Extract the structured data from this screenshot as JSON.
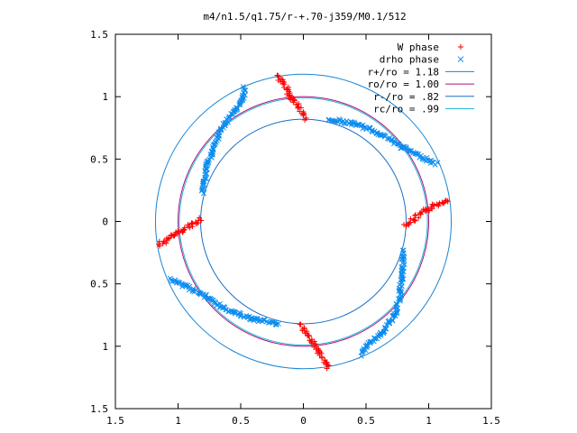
{
  "chart_data": {
    "type": "scatter",
    "title": "m4/n1.5/q1.75/r-+.70-j359/M0.1/512",
    "xlim": [
      -1.5,
      1.5
    ],
    "ylim": [
      -1.5,
      1.5
    ],
    "x_ticks": [
      -1.5,
      -1,
      -0.5,
      0,
      0.5,
      1,
      1.5
    ],
    "y_ticks": [
      1.5,
      1,
      0.5,
      0,
      -0.5,
      -1,
      -1.5
    ],
    "x_tick_labels": [
      "1.5",
      "1",
      "0.5",
      "0",
      "0.5",
      "1",
      "1.5"
    ],
    "y_tick_labels": [
      "1.5",
      "1",
      "0.5",
      "0",
      "0.5",
      "1",
      "1.5"
    ],
    "grid": false,
    "legend_position": "top-right",
    "legend": [
      {
        "label": "W phase",
        "marker": "+",
        "color": "#ff0000"
      },
      {
        "label": "drho phase",
        "marker": "x",
        "color": "#0a8cf0"
      },
      {
        "label": "r+/ro = 1.18",
        "marker": "line",
        "color": "#1a85d4"
      },
      {
        "label": "ro/ro = 1.00",
        "marker": "line",
        "color": "#b0107f"
      },
      {
        "label": "r-/ro = .82",
        "marker": "line",
        "color": "#1a6fc4"
      },
      {
        "label": "rc/ro = .99",
        "marker": "line",
        "color": "#22b7d8"
      }
    ],
    "circles": [
      {
        "name": "r+/ro = 1.18",
        "r": 1.18,
        "color": "#1a85d4"
      },
      {
        "name": "ro/ro = 1.00",
        "r": 1.0,
        "color": "#b0107f"
      },
      {
        "name": "r-/ro = .82",
        "r": 0.82,
        "color": "#1a6fc4"
      },
      {
        "name": "rc/ro = .99",
        "r": 0.99,
        "color": "#22b7d8"
      }
    ],
    "series": [
      {
        "name": "W phase",
        "marker": "+",
        "color": "#ff0000",
        "segments": [
          [
            [
              -0.2,
              1.17
            ],
            [
              -0.09,
              0.99
            ],
            [
              0.02,
              0.83
            ]
          ],
          [
            [
              0.82,
              -0.03
            ],
            [
              0.97,
              0.08
            ],
            [
              1.15,
              0.18
            ]
          ],
          [
            [
              -0.82,
              0.02
            ],
            [
              -0.97,
              -0.08
            ],
            [
              -1.15,
              -0.18
            ]
          ],
          [
            [
              -0.02,
              -0.83
            ],
            [
              0.09,
              -0.99
            ],
            [
              0.2,
              -1.17
            ]
          ]
        ]
      },
      {
        "name": "drho phase",
        "marker": "x",
        "color": "#0a8cf0",
        "segments": [
          [
            [
              -0.8,
              0.23
            ],
            [
              -0.77,
              0.45
            ],
            [
              -0.7,
              0.63
            ],
            [
              -0.63,
              0.78
            ],
            [
              -0.55,
              0.89
            ],
            [
              -0.48,
              0.97
            ],
            [
              -0.47,
              1.07
            ]
          ],
          [
            [
              0.2,
              0.82
            ],
            [
              0.42,
              0.78
            ],
            [
              0.62,
              0.7
            ],
            [
              0.78,
              0.6
            ],
            [
              1.06,
              0.46
            ]
          ],
          [
            [
              0.8,
              -0.23
            ],
            [
              0.79,
              -0.41
            ],
            [
              0.77,
              -0.6
            ],
            [
              0.73,
              -0.75
            ],
            [
              0.63,
              -0.89
            ],
            [
              0.51,
              -0.99
            ],
            [
              0.47,
              -1.07
            ]
          ],
          [
            [
              -0.2,
              -0.82
            ],
            [
              -0.42,
              -0.78
            ],
            [
              -0.62,
              -0.7
            ],
            [
              -0.78,
              -0.6
            ],
            [
              -1.06,
              -0.46
            ]
          ]
        ]
      }
    ]
  }
}
